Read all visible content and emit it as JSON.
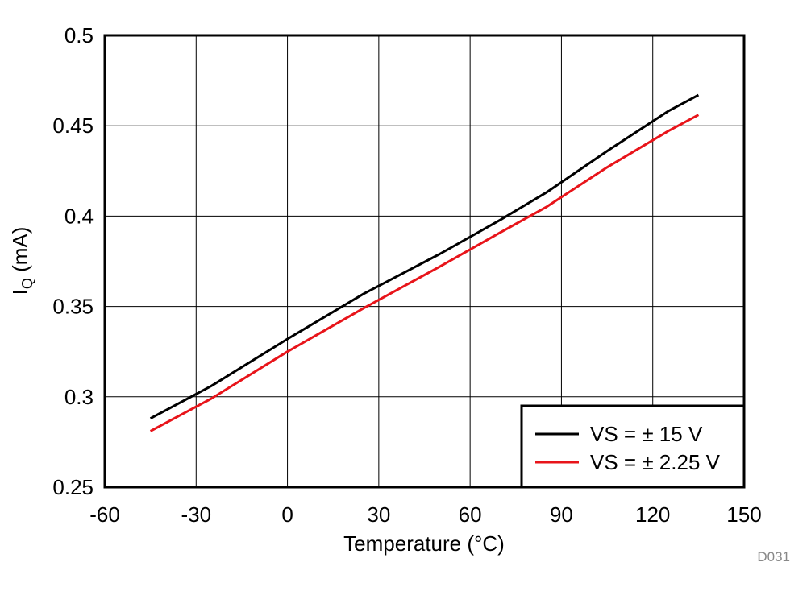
{
  "chart_data": {
    "type": "line",
    "title": "",
    "xlabel": "Temperature (°C)",
    "ylabel_main": "I",
    "ylabel_sub": "Q",
    "ylabel_unit": " (mA)",
    "xlim": [
      -60,
      150
    ],
    "ylim": [
      0.25,
      0.5
    ],
    "xticks": [
      -60,
      -30,
      0,
      30,
      60,
      90,
      120,
      150
    ],
    "xtick_labels": [
      "-60",
      "-30",
      "0",
      "30",
      "60",
      "90",
      "120",
      "150"
    ],
    "yticks": [
      0.25,
      0.3,
      0.35,
      0.4,
      0.45,
      0.5
    ],
    "ytick_labels": [
      "0.25",
      "0.3",
      "0.35",
      "0.4",
      "0.45",
      "0.5"
    ],
    "grid": true,
    "legend_position": "bottom-right",
    "series": [
      {
        "name": "VS = ± 15 V",
        "color": "#000000",
        "x": [
          -45,
          -25,
          0,
          25,
          50,
          70,
          85,
          105,
          125,
          135
        ],
        "y": [
          0.288,
          0.306,
          0.332,
          0.357,
          0.379,
          0.398,
          0.413,
          0.436,
          0.458,
          0.467
        ]
      },
      {
        "name": "VS = ± 2.25 V",
        "color": "#e8141a",
        "x": [
          -45,
          -25,
          0,
          25,
          50,
          70,
          85,
          105,
          125,
          135
        ],
        "y": [
          0.281,
          0.299,
          0.325,
          0.349,
          0.372,
          0.391,
          0.405,
          0.427,
          0.447,
          0.456
        ]
      }
    ],
    "figure_id": "D031"
  }
}
